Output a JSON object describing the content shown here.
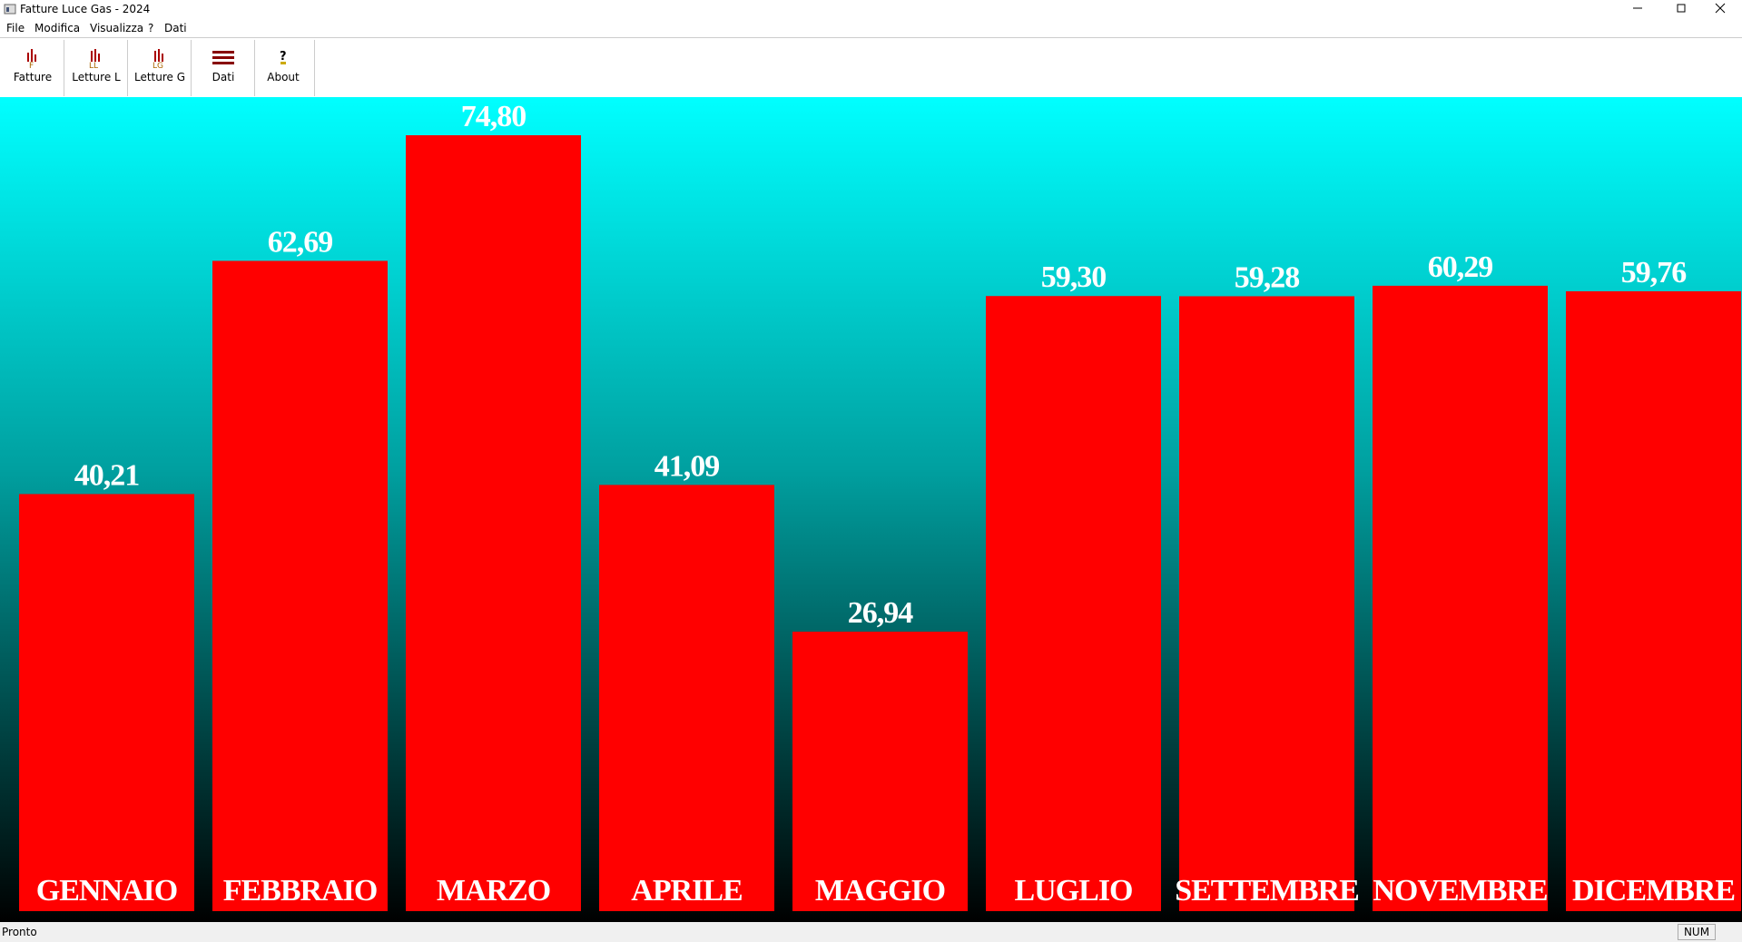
{
  "window": {
    "title": "Fatture Luce Gas - 2024"
  },
  "menu": [
    "File",
    "Modifica",
    "Visualizza",
    "?",
    "Dati"
  ],
  "toolbar": [
    "Fatture",
    "Letture L",
    "Letture G",
    "Dati",
    "About"
  ],
  "chart_data": {
    "type": "bar",
    "color": "#ff0000",
    "categories": [
      "GENNAIO",
      "FEBBRAIO",
      "MARZO",
      "APRILE",
      "MAGGIO",
      "LUGLIO",
      "SETTEMBRE",
      "NOVEMBRE",
      "DICEMBRE"
    ],
    "values": [
      40.21,
      62.69,
      74.8,
      41.09,
      26.94,
      59.3,
      59.28,
      60.29,
      59.76
    ],
    "value_labels": [
      "40,21",
      "62,69",
      "74,80",
      "41,09",
      "26,94",
      "59,30",
      "59,28",
      "60,29",
      "59,76"
    ]
  },
  "status": {
    "text": "Pronto",
    "indicator": "NUM"
  }
}
